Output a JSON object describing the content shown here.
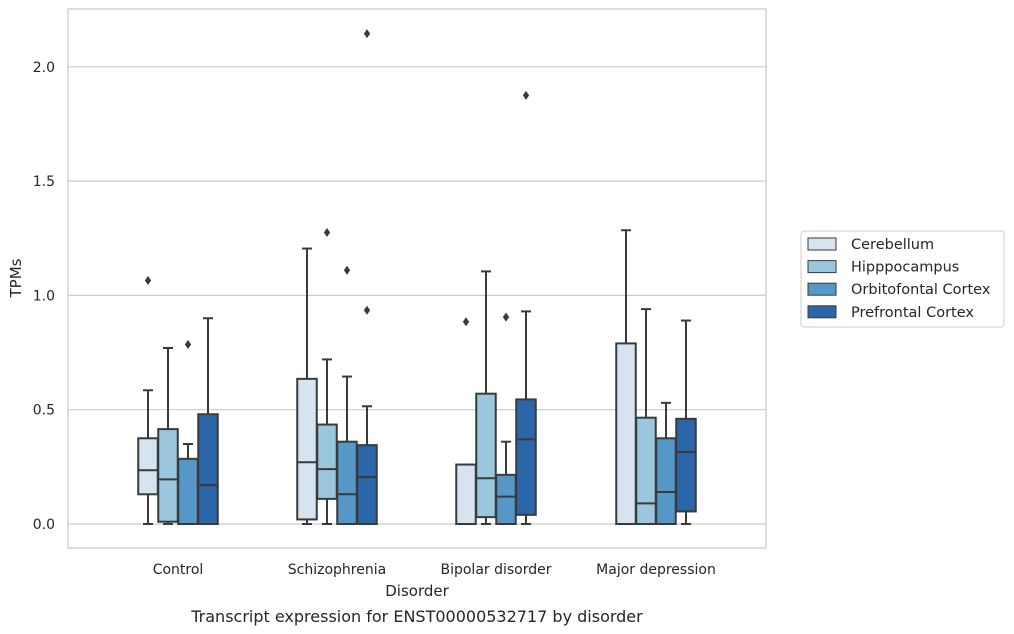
{
  "chart_data": {
    "type": "box",
    "caption": "Transcript expression for ENST00000532717 by disorder",
    "xlabel": "Disorder",
    "ylabel": "TPMs",
    "ylim": [
      -0.1,
      2.26
    ],
    "yticks": [
      0.0,
      0.5,
      1.0,
      1.5,
      2.0
    ],
    "ytick_labels": [
      "0.0",
      "0.5",
      "1.0",
      "1.5",
      "2.0"
    ],
    "grid": "horizontal",
    "legend_position": "right",
    "categories": [
      "Control",
      "Schizophrenia",
      "Bipolar disorder",
      "Major depression"
    ],
    "series": [
      {
        "name": "Cerebellum",
        "color": "#d6e4f1",
        "boxes": [
          {
            "whisker_low": 0.0,
            "q1": 0.13,
            "median": 0.235,
            "q3": 0.375,
            "whisker_high": 0.585,
            "outliers": [
              1.065
            ]
          },
          {
            "whisker_low": 0.0,
            "q1": 0.02,
            "median": 0.27,
            "q3": 0.635,
            "whisker_high": 1.205,
            "outliers": []
          },
          {
            "whisker_low": 0.0,
            "q1": 0.0,
            "median": 0.0,
            "q3": 0.26,
            "whisker_high": 0.26,
            "outliers": [
              0.885
            ]
          },
          {
            "whisker_low": 0.0,
            "q1": 0.0,
            "median": 0.0,
            "q3": 0.79,
            "whisker_high": 1.285,
            "outliers": []
          }
        ]
      },
      {
        "name": "Hipppocampus",
        "color": "#9ac6de",
        "boxes": [
          {
            "whisker_low": 0.0,
            "q1": 0.01,
            "median": 0.195,
            "q3": 0.415,
            "whisker_high": 0.77,
            "outliers": []
          },
          {
            "whisker_low": 0.0,
            "q1": 0.11,
            "median": 0.24,
            "q3": 0.435,
            "whisker_high": 0.72,
            "outliers": [
              1.275
            ]
          },
          {
            "whisker_low": 0.0,
            "q1": 0.03,
            "median": 0.2,
            "q3": 0.57,
            "whisker_high": 1.105,
            "outliers": []
          },
          {
            "whisker_low": 0.0,
            "q1": 0.0,
            "median": 0.09,
            "q3": 0.465,
            "whisker_high": 0.94,
            "outliers": []
          }
        ]
      },
      {
        "name": "Orbitofontal Cortex",
        "color": "#5597c6",
        "boxes": [
          {
            "whisker_low": 0.0,
            "q1": 0.0,
            "median": 0.0,
            "q3": 0.285,
            "whisker_high": 0.35,
            "outliers": [
              0.785
            ]
          },
          {
            "whisker_low": 0.0,
            "q1": 0.0,
            "median": 0.13,
            "q3": 0.36,
            "whisker_high": 0.645,
            "outliers": [
              1.11
            ]
          },
          {
            "whisker_low": 0.0,
            "q1": 0.0,
            "median": 0.12,
            "q3": 0.215,
            "whisker_high": 0.36,
            "outliers": [
              0.905
            ]
          },
          {
            "whisker_low": 0.0,
            "q1": 0.0,
            "median": 0.14,
            "q3": 0.375,
            "whisker_high": 0.53,
            "outliers": []
          }
        ]
      },
      {
        "name": "Prefrontal Cortex",
        "color": "#2b67a8",
        "boxes": [
          {
            "whisker_low": 0.0,
            "q1": 0.0,
            "median": 0.17,
            "q3": 0.48,
            "whisker_high": 0.9,
            "outliers": []
          },
          {
            "whisker_low": 0.0,
            "q1": 0.0,
            "median": 0.205,
            "q3": 0.345,
            "whisker_high": 0.515,
            "outliers": [
              0.935,
              2.145
            ]
          },
          {
            "whisker_low": 0.0,
            "q1": 0.04,
            "median": 0.37,
            "q3": 0.545,
            "whisker_high": 0.93,
            "outliers": [
              1.875
            ]
          },
          {
            "whisker_low": 0.0,
            "q1": 0.055,
            "median": 0.315,
            "q3": 0.46,
            "whisker_high": 0.89,
            "outliers": []
          }
        ]
      }
    ]
  }
}
